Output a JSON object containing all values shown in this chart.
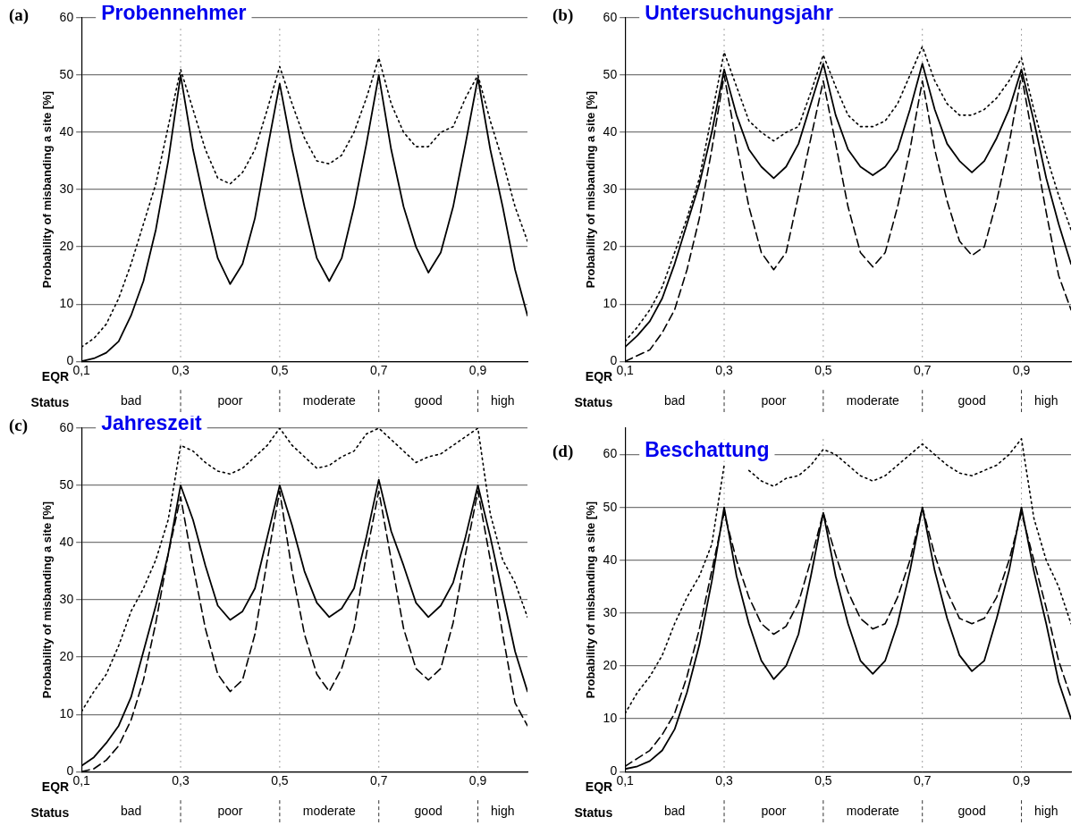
{
  "chart_data": [
    {
      "type": "line",
      "title": "Probennehmer",
      "xlabel": "EQR",
      "ylabel": "Probability of misbanding a site [%]",
      "annotations": [
        "(a)",
        "Status",
        "bad",
        "poor",
        "moderate",
        "good",
        "high"
      ],
      "marker": "none",
      "grid": "y",
      "x": [
        0.1,
        0.125,
        0.15,
        0.175,
        0.2,
        0.225,
        0.25,
        0.275,
        0.3,
        0.325,
        0.35,
        0.375,
        0.4,
        0.425,
        0.45,
        0.475,
        0.5,
        0.525,
        0.55,
        0.575,
        0.6,
        0.625,
        0.65,
        0.675,
        0.7,
        0.725,
        0.75,
        0.775,
        0.8,
        0.825,
        0.85,
        0.875,
        0.9,
        0.925,
        0.95,
        0.975,
        1.0
      ],
      "xlim": [
        0.1,
        1.0
      ],
      "xticks": [
        {
          "value": 0.1,
          "label": "0,1"
        },
        {
          "value": 0.3,
          "label": "0,3"
        },
        {
          "value": 0.5,
          "label": "0,5"
        },
        {
          "value": 0.7,
          "label": "0,7"
        },
        {
          "value": 0.9,
          "label": "0,9"
        }
      ],
      "ylim": [
        0,
        60
      ],
      "yticks": [
        0,
        10,
        20,
        30,
        40,
        50,
        60
      ],
      "ref_lines": [
        {
          "axis": "x",
          "value": 0.3,
          "line_style": "dotted"
        },
        {
          "axis": "x",
          "value": 0.5,
          "line_style": "dotted"
        },
        {
          "axis": "x",
          "value": 0.7,
          "line_style": "dotted"
        },
        {
          "axis": "x",
          "value": 0.9,
          "line_style": "dotted"
        }
      ],
      "series": [
        {
          "color": "#000000",
          "line_style": "solid",
          "values": [
            0,
            0.5,
            1.5,
            3.5,
            8,
            14,
            23,
            35,
            50,
            37,
            27,
            18,
            13.5,
            17,
            25,
            37,
            48.5,
            37,
            27,
            18,
            14,
            18,
            27,
            38,
            50,
            37,
            27,
            20,
            15.5,
            19,
            27,
            38,
            49.5,
            37,
            27,
            16,
            8
          ]
        },
        {
          "color": "#000000",
          "line_style": "dotted",
          "values": [
            2.5,
            4,
            6.5,
            11,
            17,
            24,
            31,
            41,
            51,
            44,
            37,
            32,
            31,
            33,
            37,
            44,
            51.5,
            45,
            39,
            35,
            34.5,
            36,
            40,
            46,
            53,
            45,
            40,
            37.5,
            37.5,
            40,
            41,
            46,
            50,
            42,
            35,
            27,
            21
          ]
        }
      ]
    },
    {
      "type": "line",
      "title": "Untersuchungsjahr",
      "xlabel": "EQR",
      "ylabel": "Probability of misbanding a site [%]",
      "annotations": [
        "(b)",
        "Status",
        "bad",
        "poor",
        "moderate",
        "good",
        "high"
      ],
      "marker": "none",
      "grid": "y",
      "x": [
        0.1,
        0.125,
        0.15,
        0.175,
        0.2,
        0.225,
        0.25,
        0.275,
        0.3,
        0.325,
        0.35,
        0.375,
        0.4,
        0.425,
        0.45,
        0.475,
        0.5,
        0.525,
        0.55,
        0.575,
        0.6,
        0.625,
        0.65,
        0.675,
        0.7,
        0.725,
        0.75,
        0.775,
        0.8,
        0.825,
        0.85,
        0.875,
        0.9,
        0.925,
        0.95,
        0.975,
        1.0
      ],
      "xlim": [
        0.1,
        1.0
      ],
      "xticks": [
        {
          "value": 0.1,
          "label": "0,1"
        },
        {
          "value": 0.3,
          "label": "0,3"
        },
        {
          "value": 0.5,
          "label": "0,5"
        },
        {
          "value": 0.7,
          "label": "0,7"
        },
        {
          "value": 0.9,
          "label": "0,9"
        }
      ],
      "ylim": [
        0,
        60
      ],
      "yticks": [
        0,
        10,
        20,
        30,
        40,
        50,
        60
      ],
      "ref_lines": [
        {
          "axis": "x",
          "value": 0.3,
          "line_style": "dotted"
        },
        {
          "axis": "x",
          "value": 0.5,
          "line_style": "dotted"
        },
        {
          "axis": "x",
          "value": 0.7,
          "line_style": "dotted"
        },
        {
          "axis": "x",
          "value": 0.9,
          "line_style": "dotted"
        }
      ],
      "series": [
        {
          "color": "#000000",
          "line_style": "solid",
          "values": [
            2.5,
            4.5,
            7,
            11,
            17,
            24,
            31,
            40,
            51,
            43,
            37,
            34,
            32,
            34,
            38,
            45,
            52,
            43,
            37,
            34,
            32.5,
            34,
            37,
            44,
            52,
            44,
            38,
            35,
            33,
            35,
            39,
            44,
            51,
            42,
            32,
            24,
            17
          ]
        },
        {
          "color": "#000000",
          "line_style": "dotted",
          "values": [
            3.5,
            6,
            9,
            13,
            19,
            25,
            32,
            43,
            54,
            48,
            42,
            40,
            38.5,
            40,
            41,
            47,
            53.5,
            48,
            43,
            41,
            41,
            42,
            45,
            50,
            55,
            49,
            45,
            43,
            43,
            44,
            46,
            49,
            53,
            44,
            36,
            29,
            23
          ]
        },
        {
          "color": "#000000",
          "line_style": "dashed",
          "values": [
            0,
            1,
            2,
            5,
            9,
            16,
            25,
            37,
            50,
            38,
            27,
            19,
            16,
            19,
            29,
            39,
            49,
            38,
            27,
            19,
            16.5,
            19,
            27,
            37,
            49,
            37,
            28,
            21,
            18.5,
            20,
            28,
            38,
            50,
            38,
            26,
            15,
            9
          ]
        }
      ]
    },
    {
      "type": "line",
      "title": "Jahreszeit",
      "xlabel": "EQR",
      "ylabel": "Probability of misbanding a site [%]",
      "annotations": [
        "(c)",
        "Status",
        "bad",
        "poor",
        "moderate",
        "good",
        "high"
      ],
      "marker": "none",
      "grid": "y",
      "x": [
        0.1,
        0.125,
        0.15,
        0.175,
        0.2,
        0.225,
        0.25,
        0.275,
        0.3,
        0.325,
        0.35,
        0.375,
        0.4,
        0.425,
        0.45,
        0.475,
        0.5,
        0.525,
        0.55,
        0.575,
        0.6,
        0.625,
        0.65,
        0.675,
        0.7,
        0.725,
        0.75,
        0.775,
        0.8,
        0.825,
        0.85,
        0.875,
        0.9,
        0.925,
        0.95,
        0.975,
        1.0
      ],
      "xlim": [
        0.1,
        1.0
      ],
      "xticks": [
        {
          "value": 0.1,
          "label": "0,1"
        },
        {
          "value": 0.3,
          "label": "0,3"
        },
        {
          "value": 0.5,
          "label": "0,5"
        },
        {
          "value": 0.7,
          "label": "0,7"
        },
        {
          "value": 0.9,
          "label": "0,9"
        }
      ],
      "ylim": [
        0,
        60
      ],
      "yticks": [
        0,
        10,
        20,
        30,
        40,
        50,
        60
      ],
      "ref_lines": [
        {
          "axis": "x",
          "value": 0.3,
          "line_style": "dotted"
        },
        {
          "axis": "x",
          "value": 0.5,
          "line_style": "dotted"
        },
        {
          "axis": "x",
          "value": 0.7,
          "line_style": "dotted"
        },
        {
          "axis": "x",
          "value": 0.9,
          "line_style": "dotted"
        }
      ],
      "series": [
        {
          "color": "#000000",
          "line_style": "solid",
          "values": [
            1,
            2.5,
            5,
            8,
            13,
            21,
            29,
            38,
            50,
            44,
            36,
            29,
            26.5,
            28,
            32,
            41,
            50,
            43,
            35,
            29.5,
            27,
            28.5,
            32,
            41,
            51,
            42,
            36,
            29.5,
            27,
            29,
            33,
            41,
            50,
            41,
            31,
            21,
            14
          ]
        },
        {
          "color": "#000000",
          "line_style": "dotted",
          "values": [
            10.5,
            14,
            17,
            22,
            28,
            32,
            37,
            44,
            57,
            56,
            54,
            52.5,
            52,
            53,
            55,
            57,
            60,
            57,
            55,
            53,
            53.5,
            55,
            56,
            59,
            60,
            58,
            56,
            54,
            55,
            55.5,
            57,
            58.5,
            60,
            45,
            37,
            33,
            27
          ]
        },
        {
          "color": "#000000",
          "line_style": "dashed",
          "values": [
            0,
            0.5,
            2,
            4.5,
            9,
            16,
            26,
            38,
            48,
            36,
            25,
            17,
            14,
            16,
            24,
            37,
            49,
            35,
            24,
            17,
            14,
            18,
            25,
            38,
            49,
            37,
            25,
            18,
            16,
            18,
            26,
            38,
            49,
            37,
            24,
            12,
            8
          ]
        }
      ]
    },
    {
      "type": "line",
      "title": "Beschattung",
      "xlabel": "EQR",
      "ylabel": "Probability of misbanding a site [%]",
      "annotations": [
        "(d)",
        "Status",
        "bad",
        "poor",
        "moderate",
        "good",
        "high"
      ],
      "marker": "none",
      "grid": "y",
      "x": [
        0.1,
        0.125,
        0.15,
        0.175,
        0.2,
        0.225,
        0.25,
        0.275,
        0.3,
        0.325,
        0.35,
        0.375,
        0.4,
        0.425,
        0.45,
        0.475,
        0.5,
        0.525,
        0.55,
        0.575,
        0.6,
        0.625,
        0.65,
        0.675,
        0.7,
        0.725,
        0.75,
        0.775,
        0.8,
        0.825,
        0.85,
        0.875,
        0.9,
        0.925,
        0.95,
        0.975,
        1.0
      ],
      "xlim": [
        0.1,
        1.0
      ],
      "xticks": [
        {
          "value": 0.1,
          "label": "0,1"
        },
        {
          "value": 0.3,
          "label": "0,3"
        },
        {
          "value": 0.5,
          "label": "0,5"
        },
        {
          "value": 0.7,
          "label": "0,7"
        },
        {
          "value": 0.9,
          "label": "0,9"
        }
      ],
      "ylim": [
        0,
        65
      ],
      "yticks": [
        0,
        10,
        20,
        30,
        40,
        50,
        60
      ],
      "ref_lines": [
        {
          "axis": "x",
          "value": 0.3,
          "line_style": "dotted"
        },
        {
          "axis": "x",
          "value": 0.5,
          "line_style": "dotted"
        },
        {
          "axis": "x",
          "value": 0.7,
          "line_style": "dotted"
        },
        {
          "axis": "x",
          "value": 0.9,
          "line_style": "dotted"
        }
      ],
      "series": [
        {
          "color": "#000000",
          "line_style": "solid",
          "values": [
            0.5,
            1,
            2,
            4,
            8,
            15,
            24,
            36,
            50,
            37,
            28,
            21,
            17.5,
            20,
            26,
            37,
            49,
            37,
            28,
            21,
            18.5,
            21,
            28,
            38,
            50,
            38,
            29,
            22,
            19,
            21,
            29,
            38,
            50,
            38,
            28,
            17,
            10
          ]
        },
        {
          "color": "#000000",
          "line_style": "dashed",
          "values": [
            1,
            2.5,
            4,
            7,
            11,
            18,
            27,
            38,
            49,
            40,
            33,
            28,
            26,
            27.5,
            32,
            40,
            49,
            41,
            34,
            29,
            27,
            28,
            33,
            40,
            50,
            41,
            34,
            29,
            28,
            29,
            33,
            40,
            49,
            40,
            31,
            21,
            14
          ]
        },
        {
          "color": "#000000",
          "line_style": "dotted",
          "values": [
            11,
            15,
            18,
            22,
            28,
            33,
            37,
            43,
            58,
            null,
            57,
            55,
            54,
            55.5,
            56,
            58,
            61,
            60,
            58,
            56,
            55,
            56,
            58,
            60,
            62,
            60,
            58,
            56.5,
            56,
            57,
            58,
            60,
            63,
            48,
            40,
            35,
            28
          ]
        }
      ]
    }
  ]
}
